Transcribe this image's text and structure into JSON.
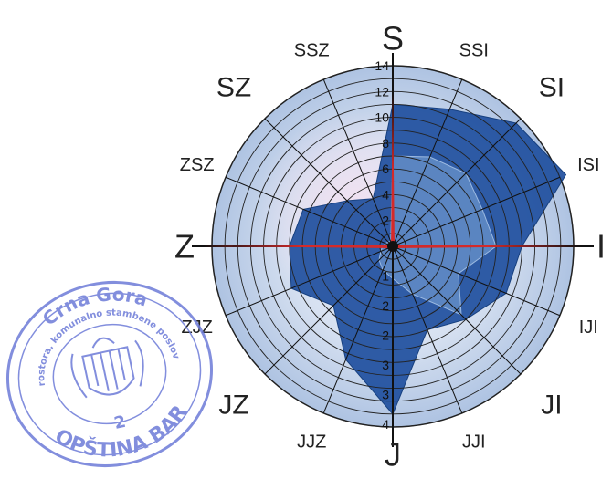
{
  "chart_data": {
    "type": "radar",
    "title": "",
    "directions": [
      "S",
      "SSI",
      "SI",
      "ISI",
      "I",
      "IJI",
      "JI",
      "JJI",
      "J",
      "JJZ",
      "JZ",
      "ZJZ",
      "Z",
      "ZSZ",
      "SZ",
      "SSZ"
    ],
    "direction_label_size": [
      "major",
      "minor",
      "inter",
      "minor",
      "major",
      "minor",
      "inter",
      "minor",
      "major",
      "minor",
      "inter",
      "minor",
      "major",
      "minor",
      "inter",
      "minor"
    ],
    "north_axis_ticks": [
      "2",
      "4",
      "6",
      "8",
      "10",
      "12",
      "14"
    ],
    "south_axis_ticks": [
      "1",
      "2",
      "2",
      "3",
      "3",
      "4"
    ],
    "rlim": [
      0,
      14
    ],
    "series": [
      {
        "values": [
          11,
          11.5,
          13.5,
          14.5,
          10,
          9.5,
          8,
          7,
          13,
          9.5,
          6.5,
          8.5,
          8,
          7.5,
          5,
          4
        ],
        "color": "#1f4f9e"
      },
      {
        "values": [
          7,
          7.5,
          8,
          7.5,
          8,
          5.5,
          7.5,
          4,
          2.5,
          2,
          1.5,
          1,
          0.8,
          0.6,
          0.5,
          0.4
        ],
        "color": "#7fa8d8"
      }
    ],
    "calm_marker_color": "#d42a2a",
    "stamp": {
      "top": "Crna Gora",
      "inner_ring": "Sekretarijat za uređenje prostora, komunalno stambene poslove i zaštitu životne sredine",
      "number": "2",
      "bottom": "OPŠTINA BAR"
    },
    "colors": {
      "plot_background": "#c2d2ea",
      "grid": "#222222",
      "series_dark": "#1f4f9e",
      "series_light": "#7fa8d8",
      "stamp": "#6d7bd8"
    }
  }
}
